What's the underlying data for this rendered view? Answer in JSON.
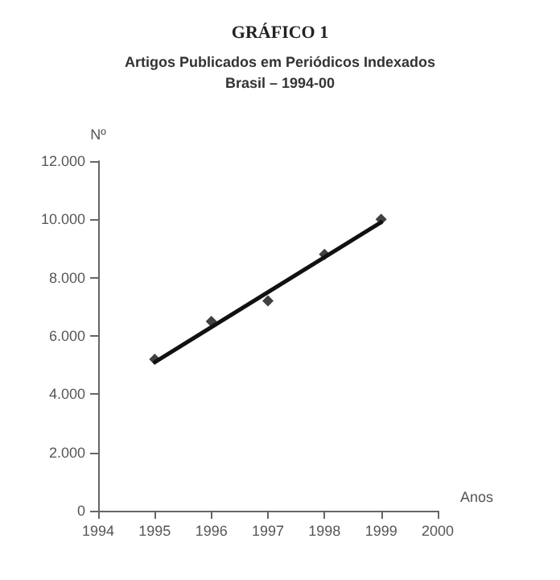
{
  "chart_data": {
    "type": "scatter",
    "title": "GRÁFICO 1",
    "subtitle": "Artigos Publicados em Periódicos Indexados\nBrasil – 1994-00",
    "xlabel": "Anos",
    "ylabel": "Nº",
    "marker": "diamond",
    "grid": false,
    "xlim": [
      1994,
      2000
    ],
    "xticks": [
      1994,
      1995,
      1996,
      1997,
      1998,
      1999,
      2000
    ],
    "ylim": [
      0,
      12000
    ],
    "yticks": [
      0,
      {
        "value": 2000,
        "label": "2.000"
      },
      {
        "value": 4000,
        "label": "4.000"
      },
      {
        "value": 6000,
        "label": "6.000"
      },
      {
        "value": 8000,
        "label": "8.000"
      },
      {
        "value": 10000,
        "label": "10.000"
      },
      {
        "value": 12000,
        "label": "12.000"
      }
    ],
    "series": [
      {
        "color": "#111111",
        "x": [
          1995,
          1996,
          1997,
          1998,
          1999
        ],
        "values": [
          5200,
          6500,
          7200,
          8800,
          10000
        ]
      },
      {
        "type": "line",
        "color": "#111111",
        "marker": "none",
        "line_style": "solid",
        "x": [
          1995,
          1999
        ],
        "values": [
          5100,
          9900
        ]
      }
    ]
  }
}
